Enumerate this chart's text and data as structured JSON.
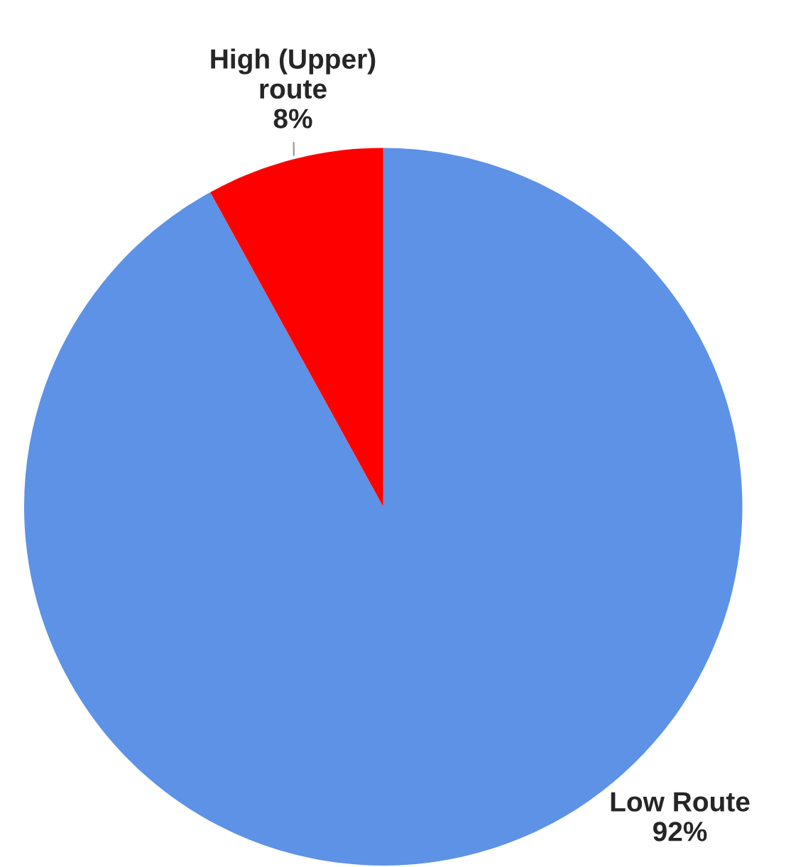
{
  "chart_data": {
    "type": "pie",
    "categories": [
      "Low Route",
      "High (Upper)\nroute"
    ],
    "values": [
      92,
      8
    ],
    "colors": [
      "#5d92e6",
      "#ff0000"
    ],
    "value_labels": [
      "92%",
      "8%"
    ]
  }
}
